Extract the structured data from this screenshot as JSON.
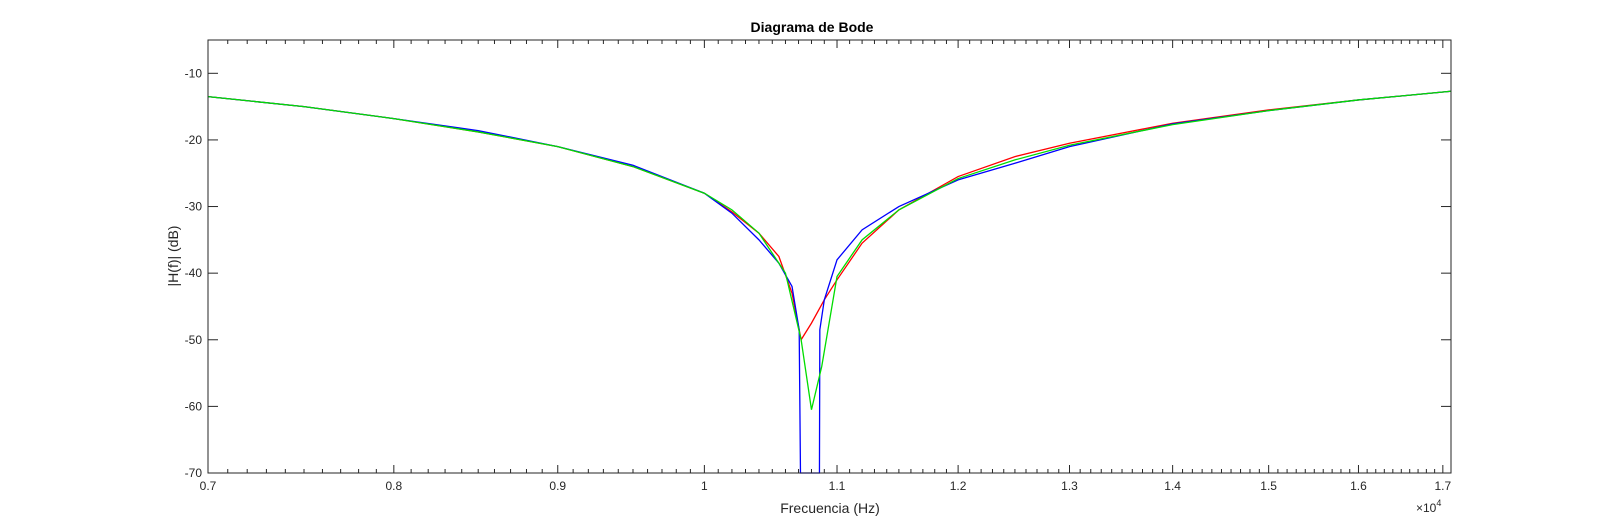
{
  "chart_data": {
    "type": "line",
    "title": "Diagrama de Bode",
    "xlabel": "Frecuencia (Hz)",
    "ylabel": "|H(f)| (dB)",
    "x_exponent_label": "×10",
    "x_exponent_power": "4",
    "xlim": [
      0.7,
      1.71
    ],
    "ylim": [
      -70,
      -5
    ],
    "xscale": "log",
    "grid": false,
    "box": true,
    "x_ticks": [
      0.7,
      0.8,
      0.9,
      1.0,
      1.1,
      1.2,
      1.3,
      1.4,
      1.5,
      1.6,
      1.7
    ],
    "x_tick_labels": [
      "0.7",
      "0.8",
      "0.9",
      "1",
      "1.1",
      "1.2",
      "1.3",
      "1.4",
      "1.5",
      "1.6",
      "1.7"
    ],
    "y_ticks": [
      -10,
      -20,
      -30,
      -40,
      -50,
      -60,
      -70
    ],
    "y_tick_labels": [
      "-10",
      "-20",
      "-30",
      "-40",
      "-50",
      "-60",
      "-70"
    ],
    "series": [
      {
        "color": "#ff0000",
        "x": [
          0.7,
          0.75,
          0.8,
          0.85,
          0.9,
          0.95,
          1.0,
          1.02,
          1.04,
          1.055,
          1.065,
          1.072,
          1.08,
          1.09,
          1.1,
          1.12,
          1.15,
          1.2,
          1.25,
          1.3,
          1.4,
          1.5,
          1.6,
          1.71
        ],
        "y": [
          -13.5,
          -15.0,
          -16.8,
          -18.8,
          -21.0,
          -24.0,
          -28.0,
          -30.8,
          -34.0,
          -37.5,
          -43.0,
          -50.0,
          -47.5,
          -44.0,
          -41.0,
          -35.5,
          -30.5,
          -25.5,
          -22.5,
          -20.5,
          -17.5,
          -15.5,
          -14.0,
          -12.7
        ]
      },
      {
        "color": "#0000ff",
        "x": [
          0.7,
          0.75,
          0.8,
          0.85,
          0.9,
          0.95,
          1.0,
          1.02,
          1.04,
          1.055,
          1.065,
          1.0705,
          1.0715,
          1.0718,
          1.0862,
          1.0865,
          1.09,
          1.1,
          1.12,
          1.15,
          1.2,
          1.25,
          1.3,
          1.4,
          1.5,
          1.6,
          1.71
        ],
        "y": [
          -13.5,
          -15.0,
          -16.8,
          -18.6,
          -21.0,
          -23.8,
          -28.0,
          -31.0,
          -35.0,
          -38.5,
          -42.0,
          -48.5,
          -70.0,
          -70.0,
          -70.0,
          -48.5,
          -44.0,
          -38.0,
          -33.5,
          -30.0,
          -26.0,
          -23.5,
          -21.0,
          -17.6,
          -15.6,
          -14.0,
          -12.7
        ]
      },
      {
        "color": "#00dd00",
        "x": [
          0.7,
          0.75,
          0.8,
          0.85,
          0.9,
          0.95,
          1.0,
          1.02,
          1.04,
          1.06,
          1.072,
          1.08,
          1.088,
          1.1,
          1.12,
          1.15,
          1.2,
          1.25,
          1.3,
          1.4,
          1.5,
          1.6,
          1.71
        ],
        "y": [
          -13.5,
          -15.0,
          -16.8,
          -18.8,
          -21.0,
          -24.0,
          -28.0,
          -30.5,
          -34.0,
          -40.0,
          -50.0,
          -60.5,
          -54.0,
          -40.5,
          -35.0,
          -30.5,
          -25.8,
          -23.0,
          -20.8,
          -17.7,
          -15.6,
          -14.0,
          -12.7
        ]
      }
    ]
  }
}
